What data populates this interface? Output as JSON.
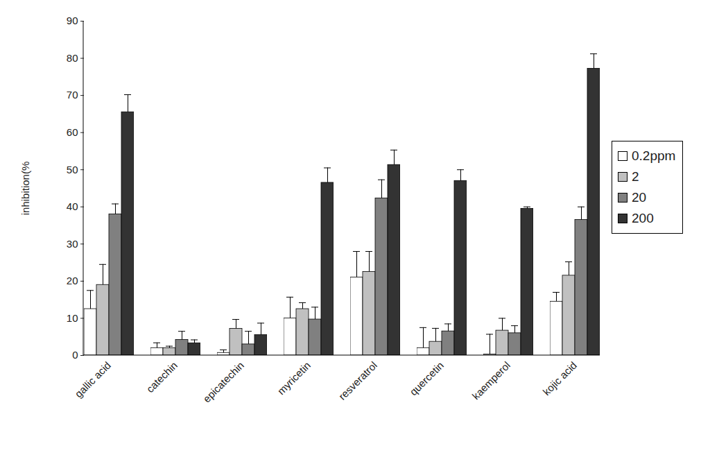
{
  "chart_data": {
    "type": "bar",
    "ylabel": "inhibition(%",
    "categories": [
      "gallic acid",
      "catechin",
      "epicatechin",
      "myricetin",
      "resveratrol",
      "quercetin",
      "kaemperol",
      "kojic acid"
    ],
    "series": [
      {
        "name": "0.2ppm",
        "color": "#ffffff",
        "values": [
          12.5,
          2,
          0.7,
          10,
          21,
          2,
          0.3,
          14.5
        ],
        "errors": [
          5,
          1.4,
          0.8,
          5.7,
          7,
          5.5,
          5.4,
          2.5
        ]
      },
      {
        "name": "2",
        "color": "#c0c0c0",
        "values": [
          19,
          2,
          7.2,
          12.5,
          22.5,
          3.7,
          6.7,
          21.5
        ],
        "errors": [
          5.5,
          0.5,
          2.5,
          1.7,
          5.5,
          3.6,
          3.3,
          3.7
        ]
      },
      {
        "name": "20",
        "color": "#808080",
        "values": [
          38,
          4.2,
          3,
          9.7,
          42.3,
          6.5,
          6,
          36.5
        ],
        "errors": [
          2.8,
          2.3,
          3.5,
          3.3,
          5,
          2,
          2,
          3.5
        ]
      },
      {
        "name": "200",
        "color": "#333333",
        "values": [
          65.5,
          3.3,
          5.5,
          46.5,
          51.3,
          47,
          39.5,
          77.2
        ],
        "errors": [
          4.7,
          0.9,
          3.2,
          4,
          4,
          3,
          0.5,
          4
        ]
      }
    ],
    "ylim": [
      0,
      90
    ],
    "yticks": [
      0,
      10,
      20,
      30,
      40,
      50,
      60,
      70,
      80,
      90
    ],
    "grid": false,
    "legend": "right"
  }
}
